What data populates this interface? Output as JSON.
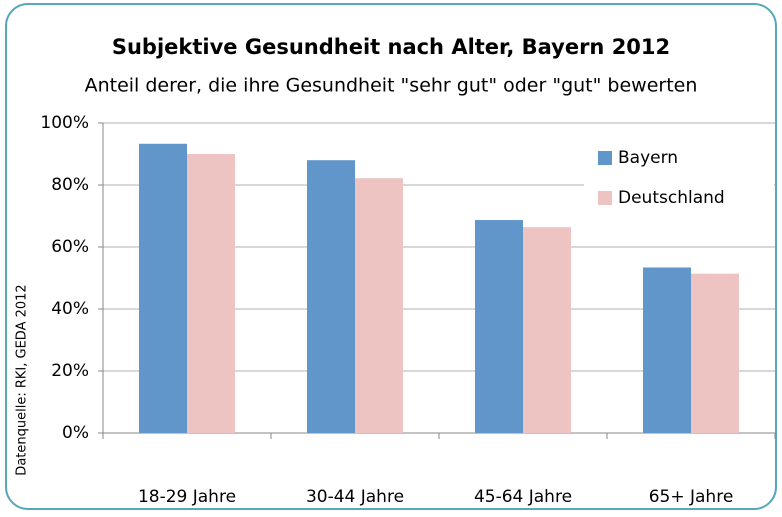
{
  "chart_data": {
    "type": "bar",
    "title": "Subjektive Gesundheit nach Alter, Bayern 2012",
    "subtitle": "Anteil derer, die ihre Gesundheit \"sehr gut\" oder \"gut\" bewerten",
    "source": "Datenquelle: RKI, GEDA 2012",
    "categories": [
      "18-29 Jahre",
      "30-44 Jahre",
      "45-64 Jahre",
      "65+ Jahre"
    ],
    "series": [
      {
        "name": "Bayern",
        "color": "#6096c9",
        "values": [
          93.3,
          88,
          68.7,
          53.4
        ]
      },
      {
        "name": "Deutschland",
        "color": "#eec4c3",
        "values": [
          90,
          82.2,
          66.4,
          51.4
        ]
      }
    ],
    "ylim": [
      0,
      100
    ],
    "yticks": [
      {
        "value": 0,
        "label": "0%"
      },
      {
        "value": 20,
        "label": "20%"
      },
      {
        "value": 40,
        "label": "40%"
      },
      {
        "value": 60,
        "label": "60%"
      },
      {
        "value": 80,
        "label": "80%"
      },
      {
        "value": 100,
        "label": "100%"
      }
    ],
    "grid": true,
    "legend": "upper right"
  }
}
